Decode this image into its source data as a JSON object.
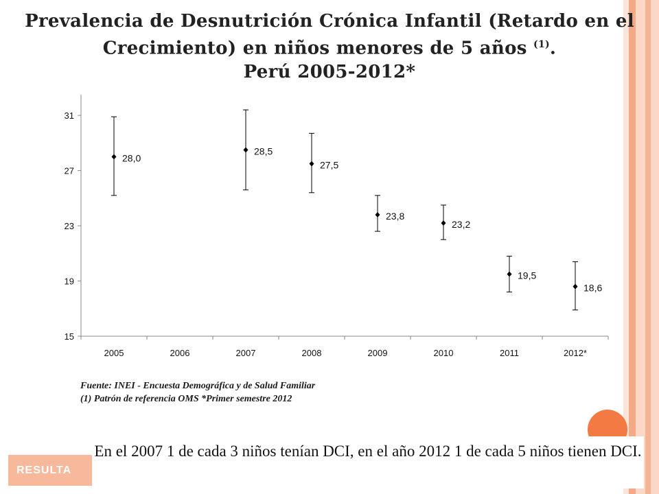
{
  "title": {
    "line1": "Prevalencia de Desnutrición Crónica Infantil (Retardo en el",
    "line2": "Crecimiento) en niños menores de 5 años",
    "line2_sup": "(1)",
    "line2_end": ".",
    "line3": "Perú 2005-2012*"
  },
  "chart_data": {
    "type": "scatter",
    "categories": [
      "2005",
      "2006",
      "2007",
      "2008",
      "2009",
      "2010",
      "2011",
      "2012*"
    ],
    "points": [
      {
        "category": "2005",
        "value": 28.0,
        "label": "28,0",
        "err_low": 25.2,
        "err_high": 30.9
      },
      {
        "category": "2007",
        "value": 28.5,
        "label": "28,5",
        "err_low": 25.6,
        "err_high": 31.4
      },
      {
        "category": "2008",
        "value": 27.5,
        "label": "27,5",
        "err_low": 25.4,
        "err_high": 29.7
      },
      {
        "category": "2009",
        "value": 23.8,
        "label": "23,8",
        "err_low": 22.6,
        "err_high": 25.2
      },
      {
        "category": "2010",
        "value": 23.2,
        "label": "23,2",
        "err_low": 22.0,
        "err_high": 24.5
      },
      {
        "category": "2011",
        "value": 19.5,
        "label": "19,5",
        "err_low": 18.2,
        "err_high": 20.8
      },
      {
        "category": "2012*",
        "value": 18.6,
        "label": "18,6",
        "err_low": 16.9,
        "err_high": 20.4
      }
    ],
    "yticks": [
      "15",
      "19",
      "23",
      "27",
      "31"
    ],
    "ylim": [
      15,
      32.5
    ],
    "grid": false,
    "error_bars": true
  },
  "source": {
    "line1": "Fuente: INEI - Encuesta Demográfica y de Salud Familiar",
    "line2": "(1) Patrón de referencia  OMS *Primer semestre 2012"
  },
  "note": "En el 2007 1 de cada 3 niños tenían DCI, en el año 2012 1 de cada 5 niños tienen DCI.",
  "section_tab": "RESULTA",
  "colors": {
    "accent": "#f47a43",
    "stripe_light": "#fbd8c6",
    "stripe_mid": "#f4a987",
    "tab": "#f7b89b",
    "marks": "#000000"
  }
}
